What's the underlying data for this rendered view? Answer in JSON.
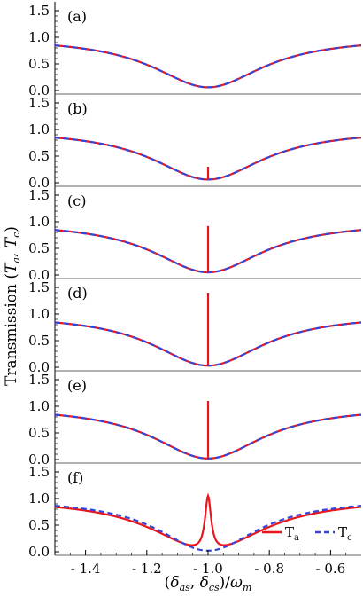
{
  "chart_data": {
    "type": "line",
    "ylabel": "Transmission (Tₐ, T꜀)",
    "ylabel_parts": {
      "prefix": "Transmission (",
      "a": "T",
      "a_sub": "a",
      "sep": ", ",
      "c": "T",
      "c_sub": "c",
      "suffix": ")"
    },
    "xlabel": "(δas, δcs)/ωm",
    "xlabel_parts": {
      "open": "(",
      "d1": "δ",
      "s1": "as",
      "comma": ", ",
      "d2": "δ",
      "s2": "cs",
      "close": ")/",
      "w": "ω",
      "ws": "m"
    },
    "xlim": [
      -1.5,
      -0.5
    ],
    "x_ticks": [
      -1.4,
      -1.2,
      -1.0,
      -0.8,
      -0.6
    ],
    "x_tick_labels": [
      "- 1.4",
      "- 1.2",
      "- 1.0",
      "- 0.8",
      "- 0.6"
    ],
    "ylim": [
      0,
      1.6
    ],
    "y_ticks": [
      0.0,
      0.5,
      1.0,
      1.5
    ],
    "y_tick_labels": [
      "0.0",
      "0.5",
      "1.0",
      "1.5"
    ],
    "series_style": [
      {
        "name": "Tₐ",
        "color": "#e8171e",
        "dash": "solid"
      },
      {
        "name": "T꜀",
        "color": "#3346d8",
        "dash": "dashed"
      }
    ],
    "legend": {
      "placement": "bottom-right",
      "entries": [
        {
          "text": "T",
          "sub": "a"
        },
        {
          "text": "T",
          "sub": "c"
        }
      ]
    },
    "panels": [
      {
        "label": "(a)",
        "baseline": {
          "center": -1.0,
          "width": 0.22,
          "floor": 0.06,
          "top": 1.0
        },
        "Ta_extra": null,
        "Tc_floor": 0.06
      },
      {
        "label": "(b)",
        "baseline": {
          "center": -1.0,
          "width": 0.22,
          "floor": 0.06,
          "top": 1.0
        },
        "Ta_extra": {
          "type": "spike",
          "x": -1.0,
          "peak": 0.3
        },
        "Tc_floor": 0.06
      },
      {
        "label": "(c)",
        "baseline": {
          "center": -1.0,
          "width": 0.22,
          "floor": 0.05,
          "top": 1.0
        },
        "Ta_extra": {
          "type": "spike",
          "x": -1.0,
          "peak": 0.92
        },
        "Tc_floor": 0.05
      },
      {
        "label": "(d)",
        "baseline": {
          "center": -1.0,
          "width": 0.22,
          "floor": 0.03,
          "top": 1.0
        },
        "Ta_extra": {
          "type": "spike",
          "x": -1.0,
          "peak": 1.4
        },
        "Tc_floor": 0.03
      },
      {
        "label": "(e)",
        "baseline": {
          "center": -1.0,
          "width": 0.22,
          "floor": 0.02,
          "top": 1.0
        },
        "Ta_extra": {
          "type": "spike",
          "x": -1.0,
          "peak": 1.1
        },
        "Tc_floor": 0.02
      },
      {
        "label": "(f)",
        "baseline": {
          "center": -1.0,
          "width": 0.22,
          "floor": 0.02,
          "top": 1.0
        },
        "Ta_extra": {
          "type": "peak",
          "x": -1.0,
          "peak": 1.05,
          "halfwidth": 0.012
        },
        "Tc_floor": 0.02
      }
    ]
  }
}
